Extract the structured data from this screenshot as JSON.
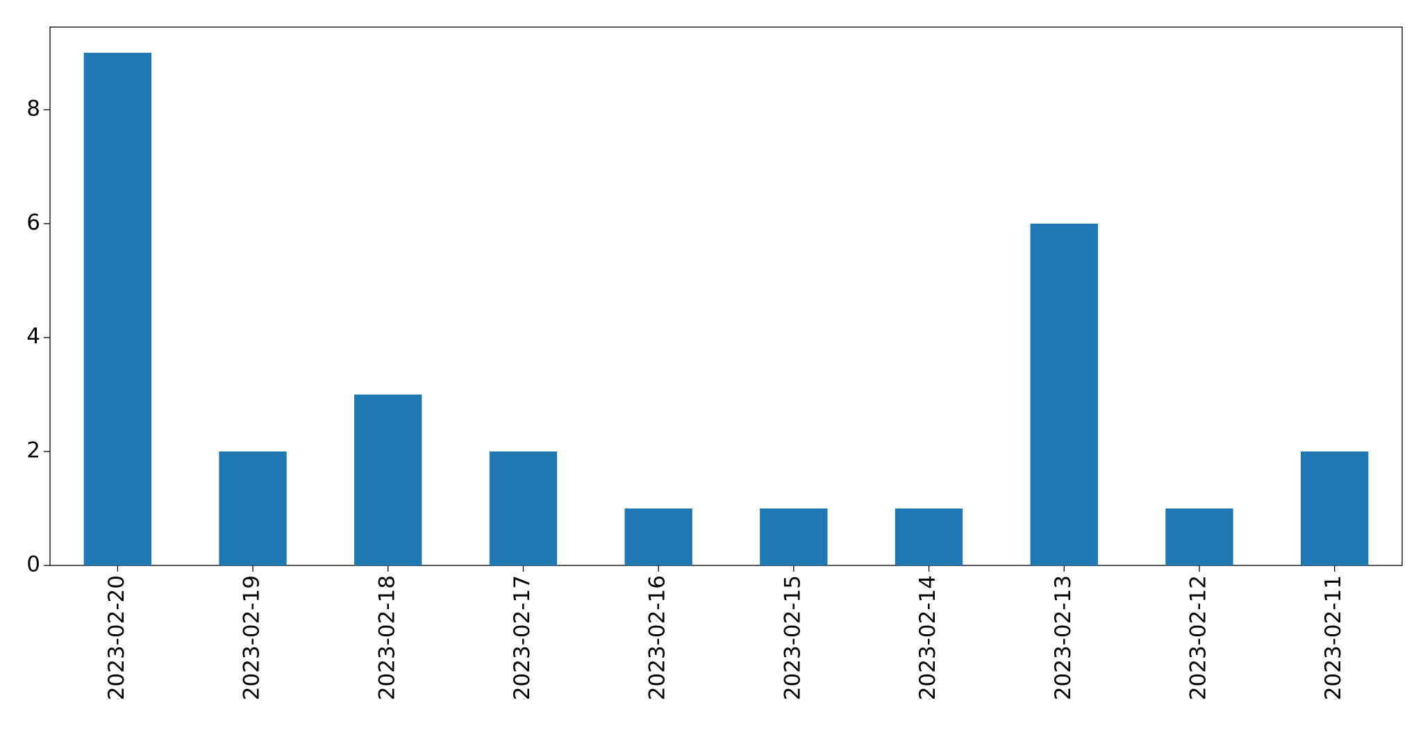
{
  "chart_data": {
    "type": "bar",
    "categories": [
      "2023-02-20",
      "2023-02-19",
      "2023-02-18",
      "2023-02-17",
      "2023-02-16",
      "2023-02-15",
      "2023-02-14",
      "2023-02-13",
      "2023-02-12",
      "2023-02-11"
    ],
    "values": [
      9,
      2,
      3,
      2,
      1,
      1,
      1,
      6,
      1,
      2
    ],
    "color": "#1f77b4",
    "ylim": [
      0,
      9.45
    ],
    "yticks": [
      0,
      2,
      4,
      6,
      8
    ],
    "grid": false
  }
}
